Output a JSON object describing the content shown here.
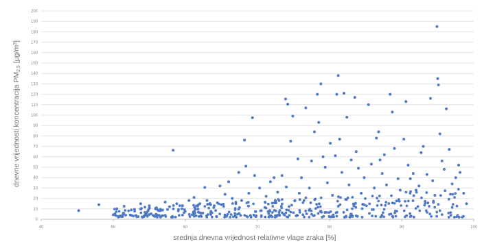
{
  "chart_data": {
    "type": "scatter",
    "xlabel": "srednja dnevna vrijednost relativne vlage zraka [%]",
    "ylabel": "dnevne vrijednosti koncentracija PM2,5 [µg/m³]",
    "ylabel_parts": {
      "main": "dnevne vrijednosti koncentracija PM",
      "sub": "2,5",
      "unit_open": " [µg/m",
      "sup": "3",
      "unit_close": "]"
    },
    "xlim": [
      40,
      100
    ],
    "ylim": [
      0,
      200
    ],
    "x_ticks": [
      40,
      50,
      60,
      70,
      80,
      90,
      100
    ],
    "y_ticks": [
      0,
      10,
      20,
      30,
      40,
      50,
      60,
      70,
      80,
      90,
      100,
      110,
      120,
      130,
      140,
      150,
      160,
      170,
      180,
      190,
      200
    ],
    "grid": {
      "horizontal": true,
      "vertical": false
    },
    "color": "#4f78c5",
    "points": [
      [
        45.2,
        8.3
      ],
      [
        48.0,
        14.0
      ],
      [
        50.5,
        10.0
      ],
      [
        51.5,
        12.5
      ],
      [
        52.5,
        9.0
      ],
      [
        53.8,
        15.0
      ],
      [
        55.0,
        13.0
      ],
      [
        56.0,
        11.0
      ],
      [
        57.2,
        16.5
      ],
      [
        57.8,
        12.0
      ],
      [
        58.3,
        66.3
      ],
      [
        58.8,
        15.0
      ],
      [
        59.6,
        13.0
      ],
      [
        60.5,
        18.0
      ],
      [
        61.2,
        21.0
      ],
      [
        62.0,
        15.0
      ],
      [
        62.7,
        30.5
      ],
      [
        63.0,
        18.0
      ],
      [
        64.0,
        13.0
      ],
      [
        64.8,
        32.0
      ],
      [
        65.5,
        24.0
      ],
      [
        66.0,
        36.0
      ],
      [
        66.5,
        20.0
      ],
      [
        67.0,
        15.0
      ],
      [
        67.4,
        45.0
      ],
      [
        67.8,
        18.0
      ],
      [
        68.2,
        76.0
      ],
      [
        68.4,
        51.0
      ],
      [
        68.8,
        25.0
      ],
      [
        69.3,
        97.5
      ],
      [
        69.6,
        42.0
      ],
      [
        70.3,
        30.0
      ],
      [
        71.2,
        22.0
      ],
      [
        71.8,
        36.0
      ],
      [
        72.3,
        40.0
      ],
      [
        72.8,
        26.0
      ],
      [
        73.4,
        42.0
      ],
      [
        73.9,
        115.5
      ],
      [
        74.0,
        31.0
      ],
      [
        74.2,
        110.5
      ],
      [
        74.6,
        75.0
      ],
      [
        74.9,
        99.0
      ],
      [
        75.2,
        18.0
      ],
      [
        75.6,
        58.0
      ],
      [
        75.8,
        25.0
      ],
      [
        76.1,
        40.0
      ],
      [
        76.7,
        107.0
      ],
      [
        77.2,
        30.0
      ],
      [
        77.5,
        56.0
      ],
      [
        77.9,
        84.0
      ],
      [
        78.3,
        120.0
      ],
      [
        78.5,
        93.0
      ],
      [
        78.8,
        130.0
      ],
      [
        79.1,
        60.0
      ],
      [
        79.4,
        50.0
      ],
      [
        79.7,
        35.0
      ],
      [
        80.1,
        73.0
      ],
      [
        80.4,
        23.0
      ],
      [
        80.8,
        61.0
      ],
      [
        81.0,
        120.0
      ],
      [
        81.2,
        138.0
      ],
      [
        81.4,
        77.0
      ],
      [
        81.7,
        45.0
      ],
      [
        82.0,
        121.0
      ],
      [
        82.4,
        98.0
      ],
      [
        82.7,
        33.0
      ],
      [
        83.0,
        57.0
      ],
      [
        83.5,
        117.0
      ],
      [
        83.7,
        65.0
      ],
      [
        84.0,
        49.0
      ],
      [
        84.4,
        25.0
      ],
      [
        84.8,
        40.0
      ],
      [
        85.4,
        110.0
      ],
      [
        85.8,
        53.0
      ],
      [
        86.2,
        30.0
      ],
      [
        86.5,
        78.0
      ],
      [
        86.8,
        84.0
      ],
      [
        87.0,
        57.0
      ],
      [
        87.3,
        44.0
      ],
      [
        87.6,
        62.0
      ],
      [
        87.9,
        33.0
      ],
      [
        88.4,
        120.0
      ],
      [
        88.7,
        103.0
      ],
      [
        89.0,
        68.0
      ],
      [
        89.5,
        39.0
      ],
      [
        89.8,
        28.0
      ],
      [
        90.3,
        77.0
      ],
      [
        90.6,
        113.0
      ],
      [
        90.9,
        52.0
      ],
      [
        91.2,
        39.0
      ],
      [
        91.6,
        44.0
      ],
      [
        92.0,
        28.0
      ],
      [
        92.4,
        32.0
      ],
      [
        92.7,
        64.0
      ],
      [
        93.0,
        70.0
      ],
      [
        93.5,
        43.0
      ],
      [
        94.0,
        116.0
      ],
      [
        94.3,
        37.0
      ],
      [
        94.6,
        23.0
      ],
      [
        94.9,
        185.0
      ],
      [
        95.0,
        135.0
      ],
      [
        95.1,
        129.0
      ],
      [
        95.3,
        82.0
      ],
      [
        95.6,
        56.0
      ],
      [
        95.9,
        48.0
      ],
      [
        96.2,
        106.0
      ],
      [
        96.6,
        67.0
      ],
      [
        97.0,
        34.0
      ],
      [
        97.5,
        40.0
      ],
      [
        97.9,
        52.0
      ],
      [
        98.1,
        45.0
      ],
      [
        98.6,
        25.0
      ],
      [
        99.0,
        15.0
      ]
    ]
  }
}
